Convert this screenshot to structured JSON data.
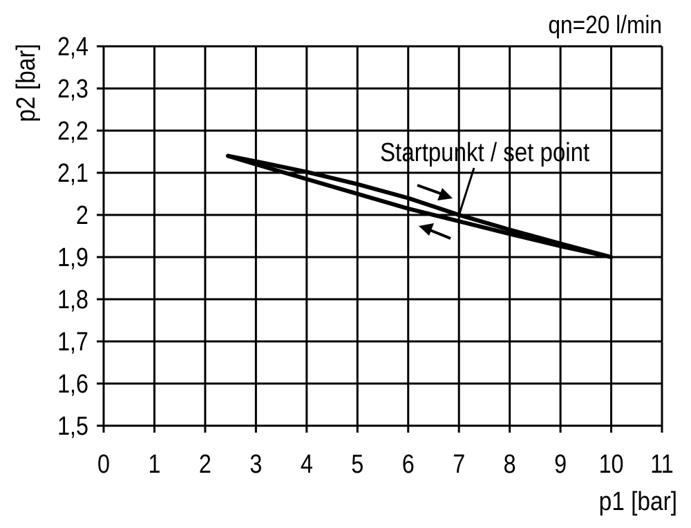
{
  "chart_data": {
    "type": "line",
    "title": "",
    "annotation_top": "qn=20 l/min",
    "xlabel": "p1 [bar]",
    "ylabel": "p2 [bar]",
    "xlim": [
      0,
      11
    ],
    "ylim": [
      1.5,
      2.4
    ],
    "grid": true,
    "x_ticks": [
      "0",
      "1",
      "2",
      "3",
      "4",
      "5",
      "6",
      "7",
      "8",
      "9",
      "10",
      "11"
    ],
    "y_ticks": [
      "1,5",
      "1,6",
      "1,7",
      "1,8",
      "1,9",
      "2",
      "2,1",
      "2,2",
      "2,3",
      "2,4"
    ],
    "set_point_label": "Startpunkt / set point",
    "set_point": {
      "x": 7,
      "y": 2.0
    },
    "line_color": "#000000",
    "series": [
      {
        "direction": "increasing",
        "x": [
          2.45,
          3,
          4,
          5,
          6,
          7,
          8,
          9,
          10
        ],
        "y": [
          2.14,
          2.127,
          2.102,
          2.073,
          2.04,
          2.0,
          1.965,
          1.932,
          1.9
        ]
      },
      {
        "direction": "decreasing",
        "x": [
          2.45,
          3,
          4,
          5,
          6,
          7,
          8,
          9,
          10
        ],
        "y": [
          2.14,
          2.12,
          2.085,
          2.05,
          2.015,
          1.985,
          1.955,
          1.926,
          1.9
        ]
      }
    ]
  }
}
